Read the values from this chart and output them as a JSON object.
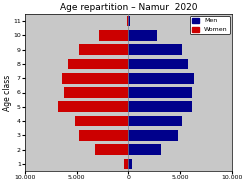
{
  "title": "Age repartition – Namur  2020",
  "ylabel": "Age class",
  "age_classes": [
    1,
    2,
    3,
    4,
    5,
    6,
    7,
    8,
    9,
    10,
    11
  ],
  "men_values": [
    400,
    3200,
    4800,
    5200,
    6200,
    6200,
    6400,
    5800,
    5200,
    2800,
    150
  ],
  "women_values": [
    400,
    3200,
    4800,
    5200,
    6800,
    6200,
    6400,
    5800,
    4800,
    2800,
    150
  ],
  "men_color": "#00008B",
  "women_color": "#CC0000",
  "xlim": 10000,
  "xticks": [
    -10000,
    -5000,
    0,
    5000,
    10000
  ],
  "xticklabels": [
    "10.000",
    "5.000",
    "0",
    "5.000",
    "10.000"
  ],
  "bar_height": 0.75,
  "background_color": "#c8c8c8",
  "legend_loc": "upper right"
}
